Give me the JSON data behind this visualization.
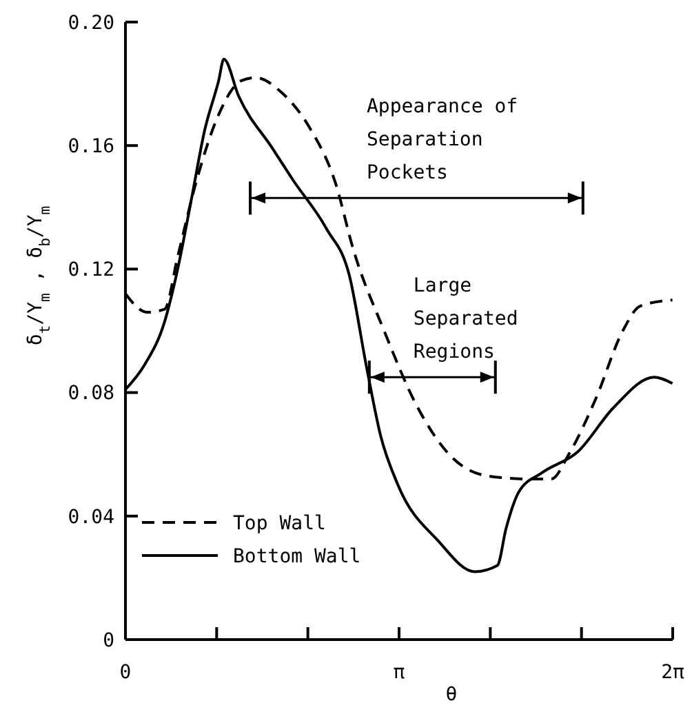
{
  "chart_data": {
    "type": "line",
    "xlabel": "θ",
    "ylabel": "δ$_{t}$/Y$_{m}$ , δ$_{b}$/Y$_{m}$",
    "xlim": [
      0,
      6.2832
    ],
    "ylim": [
      0,
      0.2
    ],
    "xticks": [
      {
        "value": 0,
        "label": "0"
      },
      {
        "value": 1.0472,
        "label": null
      },
      {
        "value": 2.0944,
        "label": null
      },
      {
        "value": 3.1416,
        "label": "π"
      },
      {
        "value": 4.1888,
        "label": null
      },
      {
        "value": 5.236,
        "label": null
      },
      {
        "value": 6.2832,
        "label": "2π"
      }
    ],
    "yticks": [
      0,
      {
        "value": 0.04,
        "label": "0.04"
      },
      {
        "value": 0.08,
        "label": "0.08"
      },
      {
        "value": 0.12,
        "label": "0.12"
      },
      {
        "value": 0.16,
        "label": "0.16"
      },
      {
        "value": 0.2,
        "label": "0.20"
      }
    ],
    "series": [
      {
        "name": "Top Wall",
        "color": "#000000",
        "line_style": "dashed",
        "x": [
          0,
          0.25,
          0.45,
          0.6,
          0.81,
          1.07,
          1.33,
          1.49,
          1.8,
          2.11,
          2.41,
          2.62,
          2.97,
          3.34,
          3.75,
          4.16,
          4.63,
          4.89,
          5.09,
          5.4,
          5.71,
          5.91,
          6.28
        ],
        "values": [
          0.112,
          0.106,
          0.107,
          0.124,
          0.148,
          0.17,
          0.181,
          0.182,
          0.177,
          0.166,
          0.148,
          0.126,
          0.1,
          0.076,
          0.059,
          0.053,
          0.052,
          0.052,
          0.06,
          0.078,
          0.1,
          0.108,
          0.11
        ]
      },
      {
        "name": "Bottom Wall",
        "color": "#000000",
        "line_style": "solid",
        "x": [
          0,
          0.22,
          0.45,
          0.6,
          0.76,
          0.91,
          1.07,
          1.13,
          1.3,
          1.69,
          1.92,
          2.31,
          2.57,
          2.77,
          2.93,
          3.13,
          3.59,
          4.01,
          4.27,
          4.37,
          4.52,
          4.78,
          5.2,
          5.6,
          6.07,
          6.28
        ],
        "values": [
          0.081,
          0.089,
          0.103,
          0.12,
          0.143,
          0.165,
          0.181,
          0.188,
          0.176,
          0.159,
          0.149,
          0.133,
          0.118,
          0.088,
          0.066,
          0.05,
          0.032,
          0.022,
          0.024,
          0.036,
          0.048,
          0.054,
          0.061,
          0.075,
          0.085,
          0.083
        ]
      }
    ],
    "annotations": [
      "Appearance of Separation Pockets",
      {
        "text": "Large Separated Regions",
        "x": 2.8,
        "y": 0.085
      }
    ],
    "legend": "bottom left",
    "marker": "none",
    "grid": false
  }
}
